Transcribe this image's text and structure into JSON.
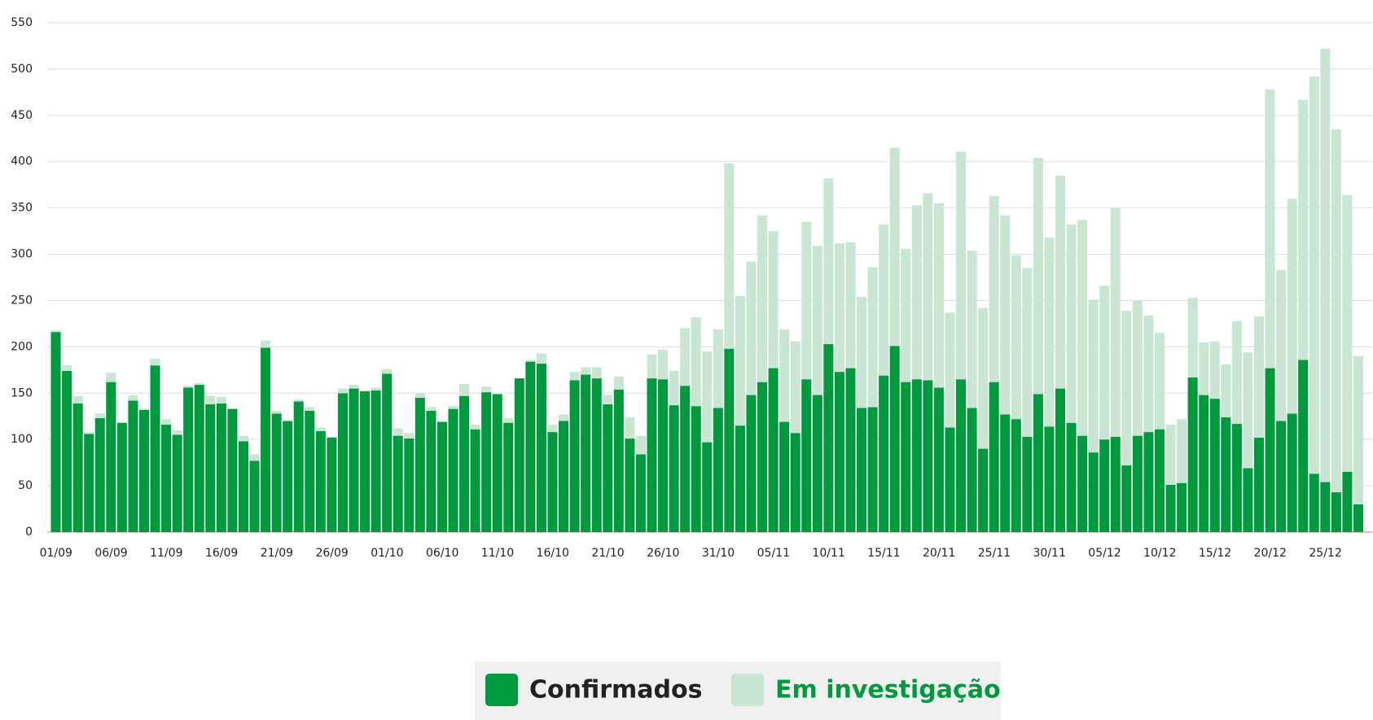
{
  "chart_data": {
    "type": "stacked_bar",
    "categories": [
      "01/09",
      null,
      null,
      null,
      null,
      "06/09",
      null,
      null,
      null,
      null,
      "11/09",
      null,
      null,
      null,
      null,
      "16/09",
      null,
      null,
      null,
      null,
      "21/09",
      null,
      null,
      null,
      null,
      "26/09",
      null,
      null,
      null,
      null,
      "01/10",
      null,
      null,
      null,
      null,
      "06/10",
      null,
      null,
      null,
      null,
      "11/10",
      null,
      null,
      null,
      null,
      "16/10",
      null,
      null,
      null,
      null,
      "21/10",
      null,
      null,
      null,
      null,
      "26/10",
      null,
      null,
      null,
      null,
      "31/10",
      null,
      null,
      null,
      null,
      "05/11",
      null,
      null,
      null,
      null,
      "10/11",
      null,
      null,
      null,
      null,
      "15/11",
      null,
      null,
      null,
      null,
      "20/11",
      null,
      null,
      null,
      null,
      "25/11",
      null,
      null,
      null,
      null,
      "30/11",
      null,
      null,
      null,
      null,
      "05/12",
      null,
      null,
      null,
      null,
      "10/12",
      null,
      null,
      null,
      null,
      "15/12",
      null,
      null,
      null,
      null,
      "20/12",
      null,
      null,
      null,
      null,
      "25/12",
      null,
      null,
      null
    ],
    "series": [
      {
        "name": "Confirmados",
        "color": "#009a3e",
        "values": [
          216,
          174,
          139,
          106,
          123,
          162,
          118,
          142,
          132,
          180,
          116,
          105,
          156,
          159,
          138,
          139,
          133,
          98,
          77,
          199,
          128,
          120,
          141,
          131,
          109,
          102,
          150,
          155,
          152,
          153,
          171,
          104,
          101,
          145,
          131,
          119,
          133,
          147,
          111,
          151,
          149,
          118,
          166,
          184,
          182,
          108,
          120,
          164,
          170,
          166,
          138,
          154,
          101,
          84,
          166,
          165,
          137,
          158,
          136,
          97,
          134,
          198,
          115,
          148,
          162,
          177,
          119,
          107,
          165,
          148,
          203,
          173,
          177,
          134,
          135,
          169,
          201,
          162,
          165,
          164,
          156,
          113,
          165,
          134,
          90,
          162,
          127,
          122,
          103,
          149,
          114,
          155,
          118,
          104,
          86,
          100,
          103,
          72,
          104,
          108,
          111,
          51,
          53,
          167,
          148,
          144,
          124,
          117,
          69,
          102,
          177,
          120,
          128,
          186,
          63,
          54,
          43,
          65,
          30
        ]
      },
      {
        "name": "Em investigação",
        "color": "#c8e6d2",
        "values": [
          2,
          6,
          8,
          2,
          5,
          10,
          0,
          6,
          1,
          7,
          6,
          5,
          2,
          2,
          9,
          7,
          0,
          6,
          7,
          8,
          3,
          0,
          2,
          4,
          4,
          1,
          5,
          4,
          1,
          3,
          5,
          8,
          6,
          5,
          4,
          0,
          3,
          13,
          5,
          6,
          0,
          5,
          0,
          2,
          11,
          8,
          7,
          9,
          8,
          12,
          10,
          14,
          23,
          20,
          26,
          32,
          37,
          62,
          96,
          98,
          85,
          200,
          140,
          144,
          180,
          148,
          100,
          99,
          170,
          161,
          179,
          139,
          136,
          120,
          151,
          163,
          214,
          144,
          188,
          202,
          199,
          124,
          246,
          170,
          152,
          201,
          215,
          177,
          182,
          255,
          204,
          230,
          214,
          233,
          165,
          166,
          247,
          167,
          146,
          126,
          104,
          65,
          69,
          86,
          57,
          62,
          57,
          111,
          125,
          131,
          301,
          163,
          232,
          281,
          429,
          468,
          392,
          299,
          160
        ]
      }
    ],
    "ylim": [
      0,
      550
    ],
    "yticks": [
      0,
      50,
      100,
      150,
      200,
      250,
      300,
      350,
      400,
      450,
      500,
      550
    ],
    "grid": true,
    "legend": "bottom"
  }
}
